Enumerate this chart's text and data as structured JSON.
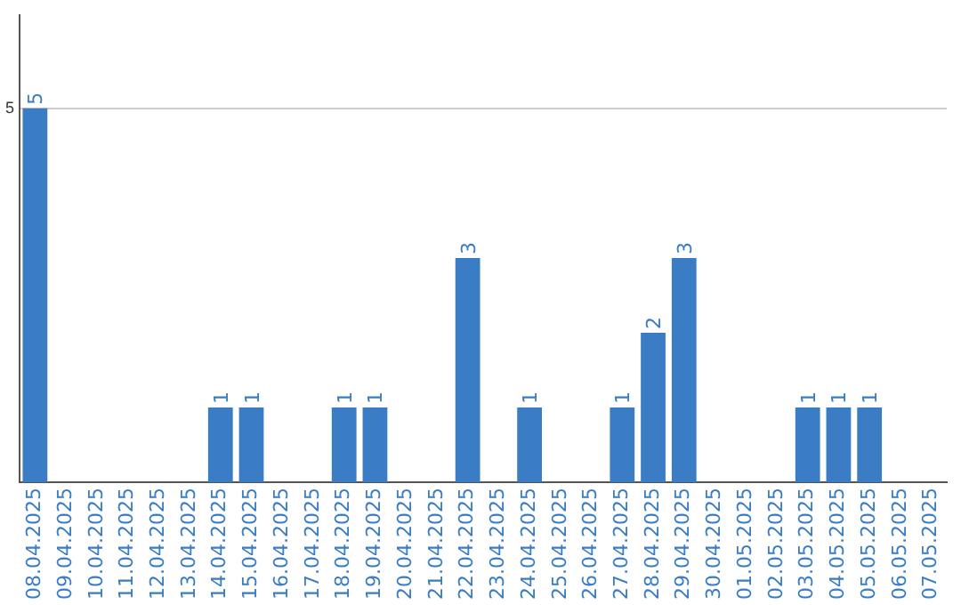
{
  "chart_data": {
    "type": "bar",
    "categories": [
      "08.04.2025",
      "09.04.2025",
      "10.04.2025",
      "11.04.2025",
      "12.04.2025",
      "13.04.2025",
      "14.04.2025",
      "15.04.2025",
      "16.04.2025",
      "17.04.2025",
      "18.04.2025",
      "19.04.2025",
      "20.04.2025",
      "21.04.2025",
      "22.04.2025",
      "23.04.2025",
      "24.04.2025",
      "25.04.2025",
      "26.04.2025",
      "27.04.2025",
      "28.04.2025",
      "29.04.2025",
      "30.04.2025",
      "01.05.2025",
      "02.05.2025",
      "03.05.2025",
      "04.05.2025",
      "05.05.2025",
      "06.05.2025",
      "07.05.2025"
    ],
    "values": [
      5,
      0,
      0,
      0,
      0,
      0,
      1,
      1,
      0,
      0,
      1,
      1,
      0,
      0,
      3,
      0,
      1,
      0,
      0,
      1,
      2,
      3,
      0,
      0,
      0,
      1,
      1,
      1,
      0,
      0
    ],
    "value_labels": [
      "5",
      null,
      null,
      null,
      null,
      null,
      "1",
      "1",
      null,
      null,
      "1",
      "1",
      null,
      null,
      "3",
      null,
      "1",
      null,
      null,
      "1",
      "2",
      "3",
      null,
      null,
      null,
      "1",
      "1",
      "1",
      null,
      null
    ],
    "color": "#3b7dc4",
    "ylim": [
      0,
      6.25
    ],
    "yticks": [
      5
    ],
    "grid": "y",
    "legend": false
  }
}
